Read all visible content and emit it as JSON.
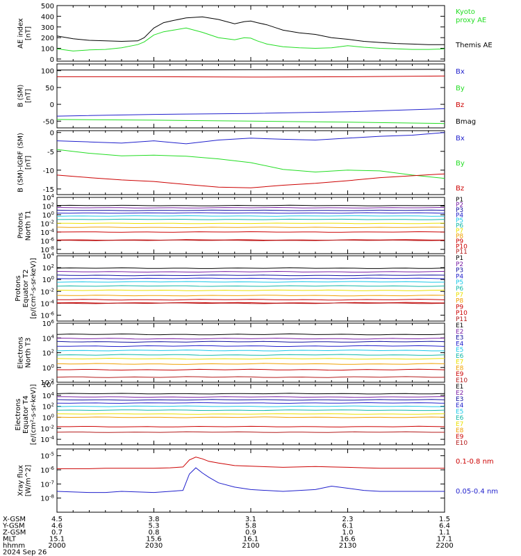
{
  "colors": {
    "black": "#000000",
    "red": "#cc0000",
    "green": "#22dd22",
    "blue": "#1f1fcc",
    "violet": "#7a1fa6",
    "navy": "#1010a0",
    "cyan": "#19c8e8",
    "teal": "#11b7a7",
    "yellow": "#ebe100",
    "orange": "#f0a000",
    "darkred": "#b41a1a"
  },
  "time_axis": {
    "ticks": [
      "2000",
      "2030",
      "2100",
      "2130",
      "2200"
    ],
    "rows": [
      {
        "label": "X-GSM",
        "values": [
          "4.5",
          "3.8",
          "3.1",
          "2.3",
          "1.5"
        ]
      },
      {
        "label": "Y-GSM",
        "values": [
          "4.6",
          "5.3",
          "5.8",
          "6.1",
          "6.4"
        ]
      },
      {
        "label": "Z-GSM",
        "values": [
          "0.7",
          "0.8",
          "0.9",
          "1.0",
          "1.1"
        ]
      },
      {
        "label": "MLT",
        "values": [
          "15.1",
          "15.6",
          "16.1",
          "16.6",
          "17.1"
        ]
      },
      {
        "label": "hhmm",
        "values": [
          "2000",
          "2030",
          "2100",
          "2130",
          "2200"
        ]
      }
    ],
    "date": "2024 Sep 26"
  },
  "chart_data": [
    {
      "type": "line",
      "id": "ae",
      "ylabel": [
        "AE index",
        "[nT]"
      ],
      "ylim": [
        -20,
        500
      ],
      "yticks": [
        0,
        100,
        200,
        300,
        400,
        500
      ],
      "yticklabels": [
        "0",
        "100",
        "200",
        "300",
        "400",
        "500"
      ],
      "legend_labels": [
        "Kyoto",
        "proxy AE",
        "Themis AE"
      ],
      "legend_colors": [
        "#22dd22",
        "#22dd22",
        "#000000"
      ],
      "x": [
        0,
        5,
        10,
        15,
        20,
        25,
        27,
        30,
        33,
        36,
        40,
        45,
        50,
        55,
        58,
        60,
        62,
        65,
        68,
        70,
        75,
        80,
        85,
        90,
        95,
        100,
        105,
        110,
        115,
        120
      ],
      "series": [
        {
          "name": "Themis AE",
          "color": "#000000",
          "values": [
            215,
            190,
            175,
            170,
            165,
            170,
            200,
            290,
            340,
            360,
            385,
            395,
            370,
            330,
            350,
            355,
            340,
            320,
            290,
            270,
            245,
            230,
            200,
            185,
            165,
            155,
            145,
            140,
            135,
            135
          ]
        },
        {
          "name": "Kyoto proxy AE",
          "color": "#22dd22",
          "values": [
            95,
            75,
            85,
            90,
            105,
            135,
            160,
            225,
            255,
            270,
            290,
            250,
            200,
            180,
            200,
            195,
            170,
            140,
            125,
            115,
            105,
            100,
            105,
            125,
            110,
            100,
            95,
            90,
            90,
            95
          ]
        }
      ]
    },
    {
      "type": "line",
      "id": "bsm",
      "ylabel": [
        "B (SM)",
        "[nT]"
      ],
      "ylim": [
        -70,
        120
      ],
      "yticks": [
        -50,
        0,
        50,
        100
      ],
      "yticklabels": [
        "-50",
        "0",
        "50",
        "100"
      ],
      "legend_labels": [
        "Bx",
        "By",
        "Bz",
        "Bmag"
      ],
      "legend_colors": [
        "#1f1fcc",
        "#22dd22",
        "#cc0000",
        "#000000"
      ],
      "x": [
        0,
        30,
        60,
        90,
        120
      ],
      "series": [
        {
          "name": "Bmag",
          "color": "#000000",
          "values": [
            102,
            102,
            103,
            103,
            104
          ]
        },
        {
          "name": "Bz",
          "color": "#cc0000",
          "values": [
            82,
            82,
            81,
            82,
            84
          ]
        },
        {
          "name": "Bx",
          "color": "#1f1fcc",
          "values": [
            -35,
            -30,
            -27,
            -22,
            -13
          ]
        },
        {
          "name": "By",
          "color": "#22dd22",
          "values": [
            -45,
            -47,
            -50,
            -53,
            -57
          ]
        }
      ]
    },
    {
      "type": "line",
      "id": "bigrf",
      "ylabel": [
        "B (SM)-IGRF (SM)",
        "[nT]"
      ],
      "ylim": [
        -16.5,
        0.5
      ],
      "yticks": [
        0,
        -5,
        -10,
        -15
      ],
      "yticklabels": [
        "0",
        "-5",
        "-10",
        "-15"
      ],
      "legend_labels": [
        "Bx",
        "By",
        "Bz"
      ],
      "legend_colors": [
        "#1f1fcc",
        "#22dd22",
        "#cc0000"
      ],
      "x": [
        0,
        10,
        20,
        30,
        40,
        50,
        60,
        70,
        80,
        90,
        100,
        110,
        120
      ],
      "series": [
        {
          "name": "Bx",
          "color": "#1f1fcc",
          "values": [
            -2.2,
            -2.5,
            -2.8,
            -2.2,
            -3.0,
            -2.0,
            -1.5,
            -1.8,
            -2.0,
            -1.5,
            -1.0,
            -0.7,
            0.0
          ]
        },
        {
          "name": "By",
          "color": "#22dd22",
          "values": [
            -4.5,
            -5.5,
            -6.2,
            -6.0,
            -6.3,
            -7.0,
            -8.0,
            -9.8,
            -10.5,
            -10.0,
            -10.2,
            -11.3,
            -12.2
          ]
        },
        {
          "name": "Bz",
          "color": "#cc0000",
          "values": [
            -11.3,
            -12.0,
            -12.6,
            -13.0,
            -13.8,
            -14.5,
            -14.7,
            -14.0,
            -13.5,
            -12.8,
            -12.0,
            -11.5,
            -11.0
          ]
        }
      ]
    },
    {
      "type": "line",
      "id": "pN",
      "ylabel": [
        "Protons",
        "North T1"
      ],
      "ylog": true,
      "ylim": [
        1e-09,
        10000.0
      ],
      "yticks": [
        10000.0,
        100.0,
        1.0,
        0.01,
        0.0001,
        1e-06,
        1e-08
      ],
      "yticklabels": [
        "10^4",
        "10^2",
        "10^0",
        "10^-2",
        "10^-4",
        "10^-6",
        "10^-8"
      ],
      "legend_labels": [
        "P1",
        "P2",
        "P3",
        "P4",
        "P5",
        "P6",
        "P7",
        "P8",
        "P9",
        "P10",
        "P11"
      ],
      "legend_colors": [
        "#000000",
        "#7a1fa6",
        "#1010a0",
        "#1f1fcc",
        "#19c8e8",
        "#11b7a7",
        "#ebe100",
        "#f0a000",
        "#cc0000",
        "#cc0000",
        "#b41a1a"
      ],
      "levels": [
        130,
        40,
        10,
        2.5,
        0.5,
        0.08,
        0.01,
        0.0012,
        0.0001,
        1.5e-06,
        1.2e-06
      ],
      "colors": [
        "#000000",
        "#7a1fa6",
        "#1010a0",
        "#1f1fcc",
        "#19c8e8",
        "#11b7a7",
        "#ebe100",
        "#f0a000",
        "#cc0000",
        "#cc0000",
        "#b41a1a"
      ]
    },
    {
      "type": "line",
      "id": "pE",
      "ylabel": [
        "Protons",
        "Equator T2",
        "[p/(cm²-s-sr-keV)]"
      ],
      "ylog": true,
      "ylim": [
        1e-07,
        10000.0
      ],
      "yticks": [
        10000.0,
        100.0,
        1.0,
        0.01,
        0.0001,
        1e-06
      ],
      "yticklabels": [
        "10^4",
        "10^2",
        "10^0",
        "10^-2",
        "10^-4",
        "10^-6"
      ],
      "legend_labels": [
        "P1",
        "P2",
        "P3",
        "P4",
        "P5",
        "P6",
        "P7",
        "P8",
        "P9",
        "P10",
        "P11"
      ],
      "legend_colors": [
        "#000000",
        "#7a1fa6",
        "#1010a0",
        "#1f1fcc",
        "#19c8e8",
        "#11b7a7",
        "#ebe100",
        "#f0a000",
        "#cc0000",
        "#cc0000",
        "#b41a1a"
      ],
      "levels": [
        80,
        20,
        5,
        1.5,
        0.4,
        0.08,
        0.015,
        0.002,
        0.0004,
        0.00012,
        0.0001
      ],
      "colors": [
        "#000000",
        "#7a1fa6",
        "#1010a0",
        "#1f1fcc",
        "#19c8e8",
        "#11b7a7",
        "#ebe100",
        "#f0a000",
        "#cc0000",
        "#cc0000",
        "#b41a1a"
      ]
    },
    {
      "type": "line",
      "id": "eN",
      "ylabel": [
        "Electrons",
        "North T3"
      ],
      "ylog": true,
      "ylim": [
        0.01,
        1000000.0
      ],
      "yticks": [
        1000000.0,
        10000.0,
        100.0,
        1.0,
        0.01
      ],
      "yticklabels": [
        "10^6",
        "10^4",
        "10^2",
        "10^0",
        "10^-2"
      ],
      "legend_labels": [
        "E1",
        "E2",
        "E3",
        "E4",
        "E5",
        "E6",
        "E7",
        "E8",
        "E9",
        "E10"
      ],
      "legend_colors": [
        "#000000",
        "#7a1fa6",
        "#1010a0",
        "#1f1fcc",
        "#19c8e8",
        "#11b7a7",
        "#ebe100",
        "#f0a000",
        "#cc0000",
        "#b41a1a"
      ],
      "levels": [
        30000,
        8000,
        3000,
        800,
        200,
        50,
        15,
        3,
        0.5,
        0.05
      ],
      "colors": [
        "#000000",
        "#7a1fa6",
        "#1010a0",
        "#1f1fcc",
        "#19c8e8",
        "#11b7a7",
        "#ebe100",
        "#f0a000",
        "#cc0000",
        "#b41a1a"
      ]
    },
    {
      "type": "line",
      "id": "eE",
      "ylabel": [
        "Electrons",
        "Equator T4",
        "[e/(cm²-s-sr-keV)]"
      ],
      "ylog": true,
      "ylim": [
        1e-05,
        1000000.0
      ],
      "yticks": [
        1000000.0,
        10000.0,
        100.0,
        1.0,
        0.01,
        0.0001
      ],
      "yticklabels": [
        "10^6",
        "10^4",
        "10^2",
        "10^0",
        "10^-2",
        "10^-4"
      ],
      "legend_labels": [
        "E1",
        "E2",
        "E3",
        "E4",
        "E5",
        "E6",
        "E7",
        "E8",
        "E9",
        "E10"
      ],
      "legend_colors": [
        "#000000",
        "#7a1fa6",
        "#1010a0",
        "#1f1fcc",
        "#19c8e8",
        "#11b7a7",
        "#ebe100",
        "#f0a000",
        "#cc0000",
        "#b41a1a"
      ],
      "levels": [
        20000,
        5000,
        1500,
        400,
        100,
        20,
        4,
        1,
        0.02,
        0.002
      ],
      "colors": [
        "#000000",
        "#7a1fa6",
        "#1010a0",
        "#1f1fcc",
        "#19c8e8",
        "#11b7a7",
        "#ebe100",
        "#f0a000",
        "#cc0000",
        "#b41a1a"
      ]
    },
    {
      "type": "line",
      "id": "xray",
      "ylabel": [
        "Xray flux",
        "[W/m^2]"
      ],
      "ylog": true,
      "ylim": [
        1e-09,
        3e-05
      ],
      "yticks": [
        1e-05,
        1e-06,
        1e-07,
        1e-08
      ],
      "yticklabels": [
        "10^-5",
        "10^-6",
        "10^-7",
        "10^-8"
      ],
      "legend_labels": [
        "0.1-0.8 nm",
        "0.05-0.4 nm"
      ],
      "legend_colors": [
        "#cc0000",
        "#1f1fcc"
      ],
      "x": [
        0,
        10,
        15,
        20,
        30,
        35,
        39,
        41,
        43,
        45,
        47,
        50,
        55,
        60,
        70,
        80,
        85,
        90,
        95,
        100,
        110,
        120
      ],
      "series": [
        {
          "name": "0.1-0.8 nm",
          "color": "#cc0000",
          "values": [
            1.2e-06,
            1.2e-06,
            1.3e-06,
            1.3e-06,
            1.3e-06,
            1.4e-06,
            1.6e-06,
            5e-06,
            8e-06,
            6e-06,
            4e-06,
            3e-06,
            2e-06,
            1.8e-06,
            1.5e-06,
            1.7e-06,
            1.6e-06,
            1.5e-06,
            1.4e-06,
            1.3e-06,
            1.3e-06,
            1.3e-06
          ]
        },
        {
          "name": "0.05-0.4 nm",
          "color": "#1f1fcc",
          "values": [
            3e-08,
            2.5e-08,
            2.5e-08,
            3e-08,
            2.5e-08,
            3e-08,
            3.5e-08,
            5e-07,
            1.4e-06,
            6e-07,
            3e-07,
            1.2e-07,
            6e-08,
            4e-08,
            3e-08,
            4e-08,
            7e-08,
            5e-08,
            3.5e-08,
            3e-08,
            3e-08,
            3e-08
          ]
        }
      ]
    }
  ]
}
